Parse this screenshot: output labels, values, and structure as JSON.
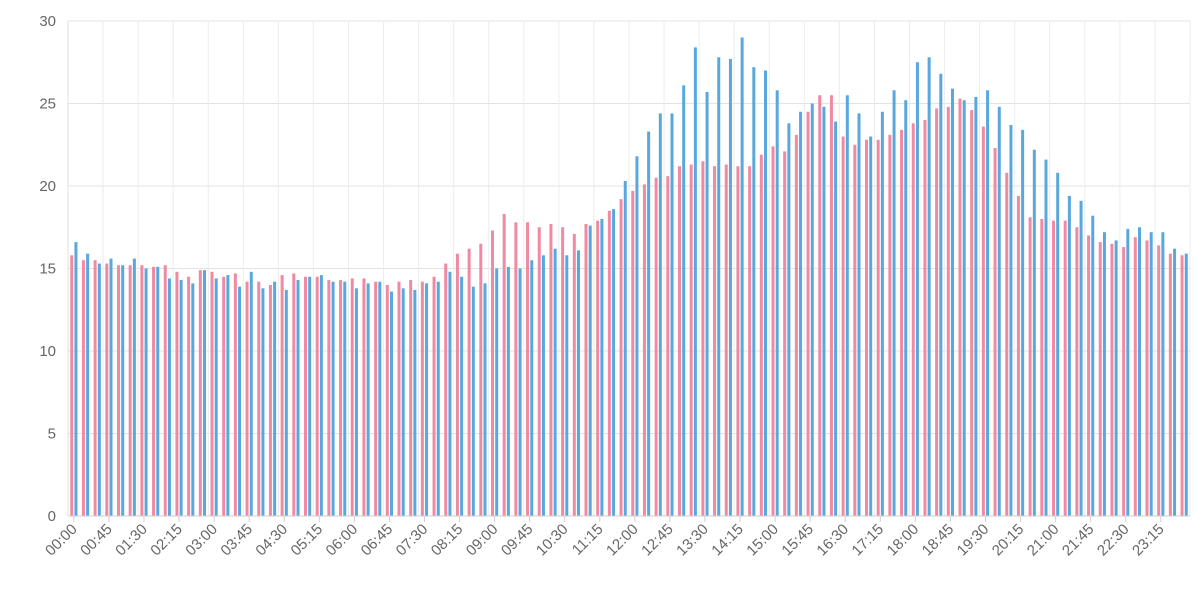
{
  "chart_data": {
    "type": "bar",
    "title": "",
    "xlabel": "",
    "ylabel": "",
    "ylim": [
      0,
      30
    ],
    "yticks": [
      0,
      5,
      10,
      15,
      20,
      25,
      30
    ],
    "grid": true,
    "legend": "none",
    "x_label_every": 3,
    "categories": [
      "00:00",
      "00:15",
      "00:30",
      "00:45",
      "01:00",
      "01:15",
      "01:30",
      "01:45",
      "02:00",
      "02:15",
      "02:30",
      "02:45",
      "03:00",
      "03:15",
      "03:30",
      "03:45",
      "04:00",
      "04:15",
      "04:30",
      "04:45",
      "05:00",
      "05:15",
      "05:30",
      "05:45",
      "06:00",
      "06:15",
      "06:30",
      "06:45",
      "07:00",
      "07:15",
      "07:30",
      "07:45",
      "08:00",
      "08:15",
      "08:30",
      "08:45",
      "09:00",
      "09:15",
      "09:30",
      "09:45",
      "10:00",
      "10:15",
      "10:30",
      "10:45",
      "11:00",
      "11:15",
      "11:30",
      "11:45",
      "12:00",
      "12:15",
      "12:30",
      "12:45",
      "13:00",
      "13:15",
      "13:30",
      "13:45",
      "14:00",
      "14:15",
      "14:30",
      "14:45",
      "15:00",
      "15:15",
      "15:30",
      "15:45",
      "16:00",
      "16:15",
      "16:30",
      "16:45",
      "17:00",
      "17:15",
      "17:30",
      "17:45",
      "18:00",
      "18:15",
      "18:30",
      "18:45",
      "19:00",
      "19:15",
      "19:30",
      "19:45",
      "20:00",
      "20:15",
      "20:30",
      "20:45",
      "21:00",
      "21:15",
      "21:30",
      "21:45",
      "22:00",
      "22:15",
      "22:30",
      "22:45",
      "23:00",
      "23:15",
      "23:30",
      "23:45"
    ],
    "series": [
      {
        "color": "#f08aa3",
        "values": [
          15.8,
          15.5,
          15.5,
          15.3,
          15.2,
          15.2,
          15.2,
          15.1,
          15.2,
          14.8,
          14.5,
          14.9,
          14.8,
          14.5,
          14.7,
          14.2,
          14.2,
          14.0,
          14.6,
          14.7,
          14.5,
          14.5,
          14.3,
          14.3,
          14.4,
          14.4,
          14.2,
          14.0,
          14.2,
          14.3,
          14.2,
          14.5,
          15.3,
          15.9,
          16.2,
          16.5,
          17.3,
          18.3,
          17.8,
          17.8,
          17.5,
          17.7,
          17.5,
          17.1,
          17.7,
          17.9,
          18.5,
          19.2,
          19.7,
          20.1,
          20.5,
          20.6,
          21.2,
          21.3,
          21.5,
          21.2,
          21.3,
          21.2,
          21.2,
          21.9,
          22.4,
          22.1,
          23.1,
          24.5,
          25.5,
          25.5,
          23.0,
          22.5,
          22.8,
          22.8,
          23.1,
          23.4,
          23.8,
          24.0,
          24.7,
          24.8,
          25.3,
          24.6,
          23.6,
          22.3,
          20.8,
          19.4,
          18.1,
          18.0,
          17.9,
          17.9,
          17.5,
          17.0,
          16.6,
          16.5,
          16.3,
          16.9,
          16.7,
          16.4,
          15.9,
          15.8
        ]
      },
      {
        "color": "#5aa7de",
        "values": [
          16.6,
          15.9,
          15.3,
          15.6,
          15.2,
          15.6,
          15.0,
          15.1,
          14.4,
          14.3,
          14.1,
          14.9,
          14.4,
          14.6,
          13.9,
          14.8,
          13.8,
          14.2,
          13.7,
          14.3,
          14.5,
          14.6,
          14.2,
          14.2,
          13.8,
          14.1,
          14.2,
          13.6,
          13.8,
          13.7,
          14.1,
          14.2,
          14.8,
          14.5,
          13.9,
          14.1,
          15.0,
          15.1,
          15.0,
          15.5,
          15.8,
          16.2,
          15.8,
          16.1,
          17.6,
          18.0,
          18.6,
          20.3,
          21.8,
          23.3,
          24.4,
          24.4,
          26.1,
          28.4,
          25.7,
          27.8,
          27.7,
          29.0,
          27.2,
          27.0,
          25.8,
          23.8,
          24.5,
          25.0,
          24.8,
          23.9,
          25.5,
          24.4,
          23.0,
          24.5,
          25.8,
          25.2,
          27.5,
          27.8,
          26.8,
          25.9,
          25.2,
          25.4,
          25.8,
          24.8,
          23.7,
          23.4,
          22.2,
          21.6,
          20.8,
          19.4,
          19.1,
          18.2,
          17.2,
          16.7,
          17.4,
          17.5,
          17.2,
          17.2,
          16.2,
          15.9
        ]
      }
    ]
  }
}
